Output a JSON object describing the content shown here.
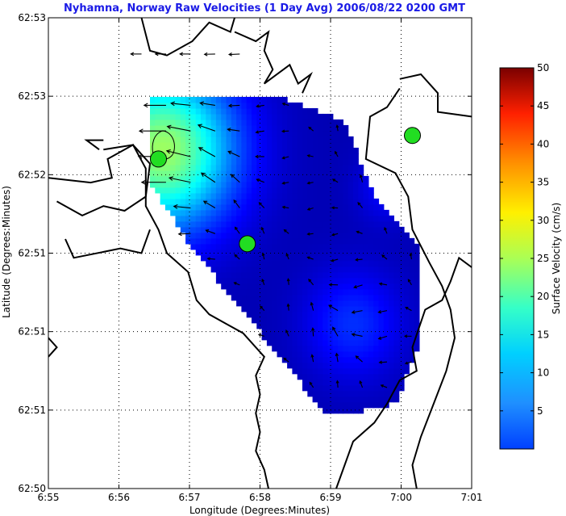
{
  "chart_data": {
    "type": "heatmap",
    "title": "Nyhamna, Norway Raw Velocities (1 Day Avg) 2006/08/22 0200 GMT",
    "xlabel": "Longitude (Degrees:Minutes)",
    "ylabel": "Latitude (Degrees:Minutes)",
    "x_ticks": [
      "6:55",
      "6:56",
      "6:57",
      "6:58",
      "6:59",
      "7:00",
      "7:01"
    ],
    "y_ticks": [
      "62:50",
      "62:51",
      "62:51",
      "62:51",
      "62:52",
      "62:53",
      "62:53"
    ],
    "grid": true,
    "colorbar": {
      "label": "Surface Velocity (cm/s)",
      "min": 0,
      "max": 50,
      "ticks": [
        "5",
        "10",
        "15",
        "20",
        "25",
        "30",
        "35",
        "40",
        "45",
        "50"
      ],
      "tick_values": [
        5,
        10,
        15,
        20,
        25,
        30,
        35,
        40,
        45,
        50
      ]
    },
    "stations": [
      {
        "x": 0.26,
        "y": 0.7
      },
      {
        "x": 0.47,
        "y": 0.52
      },
      {
        "x": 0.86,
        "y": 0.75
      }
    ],
    "flow": "westward currents strongest (about 20-25 cm/s) in the northwest of the domain, weak (about 2-6 cm/s) in the southeast",
    "colors": {
      "title": "#1a1ae6",
      "station": "#22dd22",
      "coast": "#000000"
    }
  }
}
